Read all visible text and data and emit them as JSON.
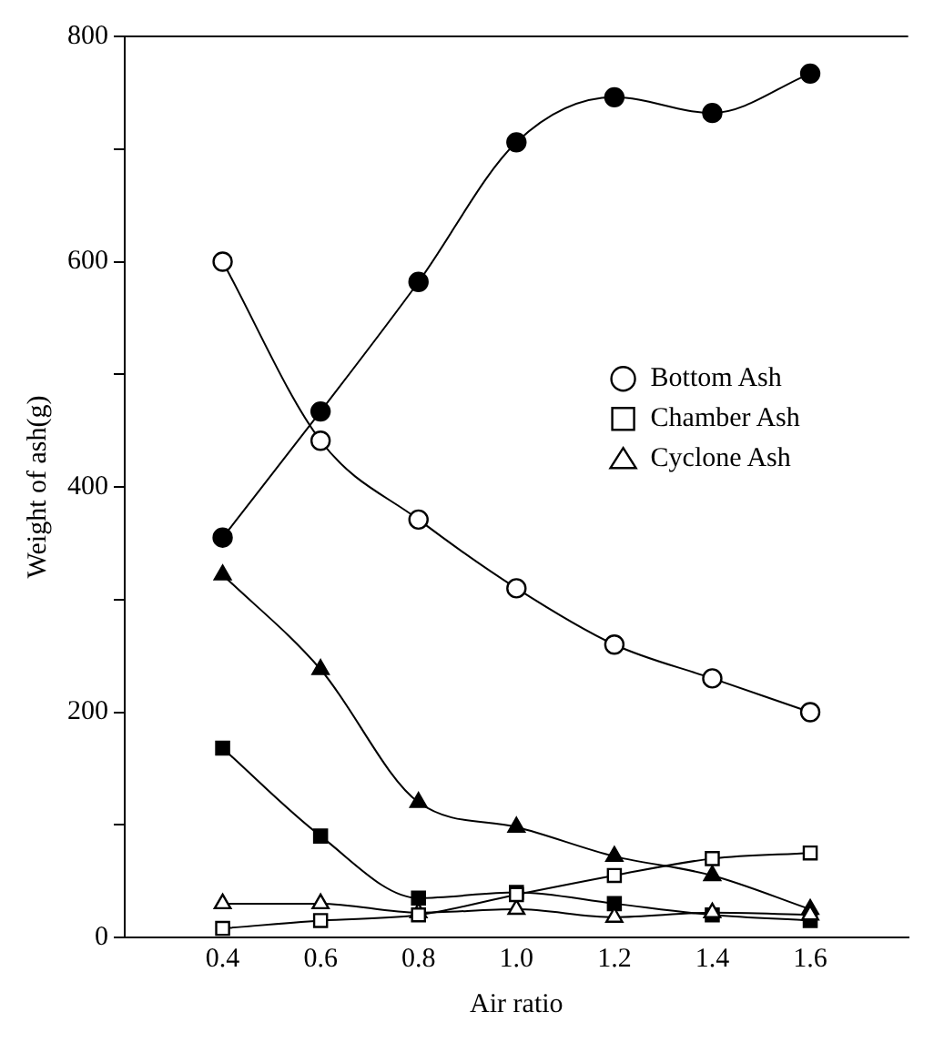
{
  "chart_data": {
    "type": "line",
    "xlabel": "Air ratio",
    "ylabel": "Weight of ash(g)",
    "x": [
      0.4,
      0.6,
      0.8,
      1.0,
      1.2,
      1.4,
      1.6
    ],
    "xlim": [
      0.2,
      1.8
    ],
    "xticks": [
      0.4,
      0.6,
      0.8,
      {
        "value": 1,
        "label": "1.0"
      },
      1.2,
      1.4,
      1.6
    ],
    "ylim": [
      0,
      800
    ],
    "yticks": [
      0,
      {
        "value": 100,
        "label": null
      },
      200,
      {
        "value": 300,
        "label": null
      },
      400,
      {
        "value": 500,
        "label": null
      },
      600,
      {
        "value": 700,
        "label": null
      },
      800
    ],
    "grid": false,
    "legend": "right",
    "line_style": "solid",
    "series": [
      {
        "name": "Bottom Ash",
        "color": "#000000",
        "marker": "circle",
        "values": [
          600,
          441,
          371,
          310,
          260,
          230,
          200
        ]
      },
      {
        "name": "Chamber Ash",
        "color": "#000000",
        "marker": "square",
        "values": [
          8,
          15,
          20,
          38,
          55,
          70,
          75
        ]
      },
      {
        "name": "Cyclone Ash",
        "color": "#000000",
        "marker": "triangle",
        "values": [
          30,
          30,
          22,
          25,
          18,
          22,
          20
        ]
      },
      {
        "color": "#000000",
        "marker": "circle",
        "values": [
          355,
          467,
          582,
          706,
          746,
          732,
          767
        ]
      },
      {
        "color": "#000000",
        "marker": "square",
        "values": [
          168,
          90,
          35,
          40,
          30,
          20,
          15
        ]
      },
      {
        "color": "#000000",
        "marker": "triangle",
        "values": [
          322,
          238,
          120,
          98,
          72,
          55,
          25
        ]
      }
    ]
  }
}
